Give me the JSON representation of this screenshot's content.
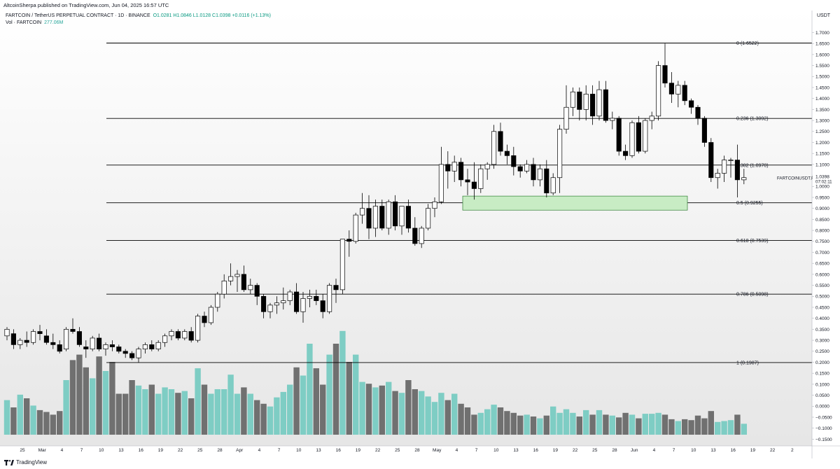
{
  "header": {
    "publisher": "AltcoinSherpa",
    "publish_text": "AltcoinSherpa published on TradingView.com, Jun 04, 2025 16:57 UTC"
  },
  "legend": {
    "symbol_line": "FARTCOIN / TetherUS PERPETUAL CONTRACT · 1D · BINANCE",
    "ohlc": "O1.0281 H1.0846 L1.0128 C1.0398 +0.0116 (+1.13%)",
    "volume_label": "Vol · FARTCOIN",
    "volume_value": "277.06M"
  },
  "price_axis": {
    "currency": "USDT",
    "current_price": "1.0398",
    "countdown": "07:02:11",
    "symbol_tag": "FARTCOINUSDT.P",
    "ticks": [
      "1.7000",
      "1.6500",
      "1.6000",
      "1.5500",
      "1.5000",
      "1.4500",
      "1.4000",
      "1.3500",
      "1.3000",
      "1.2500",
      "1.2000",
      "1.1500",
      "1.1000",
      "1.0500",
      "1.0000",
      "0.9500",
      "0.9000",
      "0.8500",
      "0.8000",
      "0.7500",
      "0.7000",
      "0.6500",
      "0.6000",
      "0.5500",
      "0.5000",
      "0.4500",
      "0.4000",
      "0.3500",
      "0.3000",
      "0.2500",
      "0.2000",
      "0.1500",
      "0.1000",
      "0.0500",
      "0.0000",
      "−0.0500",
      "−0.1000",
      "−0.1500"
    ]
  },
  "time_axis": {
    "labels": [
      "25",
      "Mar",
      "4",
      "7",
      "10",
      "13",
      "16",
      "19",
      "22",
      "25",
      "28",
      "Apr",
      "4",
      "7",
      "10",
      "13",
      "16",
      "19",
      "22",
      "25",
      "28",
      "May",
      "4",
      "7",
      "10",
      "13",
      "16",
      "19",
      "22",
      "25",
      "28",
      "Jun",
      "4",
      "7",
      "10",
      "13",
      "16",
      "19",
      "22",
      "2"
    ]
  },
  "footer": {
    "brand": "TradingView"
  },
  "colors": {
    "up_body": "#ffffff",
    "down_body": "#000000",
    "candle_outline": "#000000",
    "vol_up": "#7ecdc4",
    "vol_down": "#707070",
    "fib_line": "#000000",
    "zone_fill": "#c8ecc4",
    "zone_border": "#2e7d32",
    "background_bottom": "#e6e6e6"
  },
  "chart_data": {
    "type": "candlestick",
    "symbol": "FARTCOIN / TetherUS PERPETUAL CONTRACT",
    "interval": "1D",
    "exchange": "BINANCE",
    "ylim": [
      -0.15,
      1.72
    ],
    "price_scale": "linear",
    "grid": false,
    "first_bar_date": "2025-02-23",
    "fib_levels": [
      {
        "label": "0 (1.6522)",
        "price": 1.6522
      },
      {
        "label": "0.236 (1.3092)",
        "price": 1.3092
      },
      {
        "label": "0.382 (1.0970)",
        "price": 1.097
      },
      {
        "label": "0.5 (0.9255)",
        "price": 0.9255
      },
      {
        "label": "0.618 (0.7539)",
        "price": 0.7539
      },
      {
        "label": "0.786 (0.5098)",
        "price": 0.5098
      },
      {
        "label": "1 (0.1987)",
        "price": 0.1987
      }
    ],
    "support_zone": {
      "top": 0.956,
      "bottom": 0.892,
      "start_date": "2025-05-04",
      "end_date": "2025-06-07"
    },
    "volume_note": "volume panel overlaid at bottom, relative units",
    "candles": [
      {
        "o": 0.32,
        "h": 0.36,
        "l": 0.3,
        "c": 0.35,
        "v": 0.38
      },
      {
        "o": 0.33,
        "h": 0.35,
        "l": 0.26,
        "c": 0.28,
        "v": 0.3
      },
      {
        "o": 0.28,
        "h": 0.31,
        "l": 0.26,
        "c": 0.3,
        "v": 0.44
      },
      {
        "o": 0.3,
        "h": 0.34,
        "l": 0.27,
        "c": 0.29,
        "v": 0.4
      },
      {
        "o": 0.29,
        "h": 0.35,
        "l": 0.28,
        "c": 0.34,
        "v": 0.32
      },
      {
        "o": 0.34,
        "h": 0.37,
        "l": 0.3,
        "c": 0.33,
        "v": 0.27
      },
      {
        "o": 0.32,
        "h": 0.35,
        "l": 0.28,
        "c": 0.29,
        "v": 0.25
      },
      {
        "o": 0.29,
        "h": 0.33,
        "l": 0.26,
        "c": 0.28,
        "v": 0.22
      },
      {
        "o": 0.28,
        "h": 0.3,
        "l": 0.24,
        "c": 0.25,
        "v": 0.26
      },
      {
        "o": 0.26,
        "h": 0.36,
        "l": 0.25,
        "c": 0.35,
        "v": 0.6
      },
      {
        "o": 0.35,
        "h": 0.4,
        "l": 0.33,
        "c": 0.34,
        "v": 0.82
      },
      {
        "o": 0.34,
        "h": 0.36,
        "l": 0.27,
        "c": 0.28,
        "v": 0.88
      },
      {
        "o": 0.27,
        "h": 0.3,
        "l": 0.22,
        "c": 0.26,
        "v": 0.74
      },
      {
        "o": 0.26,
        "h": 0.32,
        "l": 0.25,
        "c": 0.31,
        "v": 0.62
      },
      {
        "o": 0.31,
        "h": 0.33,
        "l": 0.25,
        "c": 0.26,
        "v": 0.86
      },
      {
        "o": 0.26,
        "h": 0.29,
        "l": 0.23,
        "c": 0.28,
        "v": 0.7
      },
      {
        "o": 0.28,
        "h": 0.3,
        "l": 0.25,
        "c": 0.27,
        "v": 0.8
      },
      {
        "o": 0.27,
        "h": 0.28,
        "l": 0.24,
        "c": 0.25,
        "v": 0.45
      },
      {
        "o": 0.25,
        "h": 0.26,
        "l": 0.22,
        "c": 0.24,
        "v": 0.45
      },
      {
        "o": 0.24,
        "h": 0.25,
        "l": 0.21,
        "c": 0.22,
        "v": 0.6
      },
      {
        "o": 0.22,
        "h": 0.27,
        "l": 0.2,
        "c": 0.26,
        "v": 0.54
      },
      {
        "o": 0.26,
        "h": 0.29,
        "l": 0.24,
        "c": 0.28,
        "v": 0.5
      },
      {
        "o": 0.28,
        "h": 0.3,
        "l": 0.25,
        "c": 0.26,
        "v": 0.55
      },
      {
        "o": 0.26,
        "h": 0.3,
        "l": 0.25,
        "c": 0.29,
        "v": 0.45
      },
      {
        "o": 0.29,
        "h": 0.33,
        "l": 0.27,
        "c": 0.32,
        "v": 0.52
      },
      {
        "o": 0.32,
        "h": 0.35,
        "l": 0.3,
        "c": 0.34,
        "v": 0.5
      },
      {
        "o": 0.34,
        "h": 0.35,
        "l": 0.3,
        "c": 0.31,
        "v": 0.46
      },
      {
        "o": 0.31,
        "h": 0.35,
        "l": 0.3,
        "c": 0.34,
        "v": 0.48
      },
      {
        "o": 0.34,
        "h": 0.36,
        "l": 0.29,
        "c": 0.3,
        "v": 0.4
      },
      {
        "o": 0.3,
        "h": 0.42,
        "l": 0.29,
        "c": 0.41,
        "v": 0.73
      },
      {
        "o": 0.41,
        "h": 0.43,
        "l": 0.36,
        "c": 0.38,
        "v": 0.55
      },
      {
        "o": 0.38,
        "h": 0.46,
        "l": 0.37,
        "c": 0.45,
        "v": 0.45
      },
      {
        "o": 0.45,
        "h": 0.52,
        "l": 0.43,
        "c": 0.51,
        "v": 0.5
      },
      {
        "o": 0.51,
        "h": 0.6,
        "l": 0.49,
        "c": 0.57,
        "v": 0.5
      },
      {
        "o": 0.57,
        "h": 0.65,
        "l": 0.55,
        "c": 0.59,
        "v": 0.66
      },
      {
        "o": 0.59,
        "h": 0.62,
        "l": 0.52,
        "c": 0.6,
        "v": 0.45
      },
      {
        "o": 0.6,
        "h": 0.64,
        "l": 0.52,
        "c": 0.53,
        "v": 0.52
      },
      {
        "o": 0.53,
        "h": 0.58,
        "l": 0.51,
        "c": 0.55,
        "v": 0.45
      },
      {
        "o": 0.55,
        "h": 0.56,
        "l": 0.46,
        "c": 0.5,
        "v": 0.38
      },
      {
        "o": 0.5,
        "h": 0.51,
        "l": 0.4,
        "c": 0.43,
        "v": 0.34
      },
      {
        "o": 0.43,
        "h": 0.47,
        "l": 0.4,
        "c": 0.46,
        "v": 0.31
      },
      {
        "o": 0.46,
        "h": 0.5,
        "l": 0.42,
        "c": 0.47,
        "v": 0.41
      },
      {
        "o": 0.47,
        "h": 0.54,
        "l": 0.44,
        "c": 0.48,
        "v": 0.47
      },
      {
        "o": 0.48,
        "h": 0.53,
        "l": 0.46,
        "c": 0.52,
        "v": 0.55
      },
      {
        "o": 0.52,
        "h": 0.56,
        "l": 0.42,
        "c": 0.43,
        "v": 0.74
      },
      {
        "o": 0.43,
        "h": 0.52,
        "l": 0.38,
        "c": 0.49,
        "v": 0.65
      },
      {
        "o": 0.49,
        "h": 0.53,
        "l": 0.45,
        "c": 0.5,
        "v": 1.0
      },
      {
        "o": 0.5,
        "h": 0.53,
        "l": 0.46,
        "c": 0.48,
        "v": 0.73
      },
      {
        "o": 0.48,
        "h": 0.51,
        "l": 0.4,
        "c": 0.43,
        "v": 0.55
      },
      {
        "o": 0.43,
        "h": 0.56,
        "l": 0.42,
        "c": 0.55,
        "v": 0.88
      },
      {
        "o": 0.55,
        "h": 0.58,
        "l": 0.47,
        "c": 0.53,
        "v": 1.0
      },
      {
        "o": 0.53,
        "h": 0.76,
        "l": 0.51,
        "c": 0.76,
        "v": 1.14
      },
      {
        "o": 0.76,
        "h": 0.8,
        "l": 0.68,
        "c": 0.75,
        "v": 0.8
      },
      {
        "o": 0.75,
        "h": 0.88,
        "l": 0.74,
        "c": 0.87,
        "v": 0.88
      },
      {
        "o": 0.87,
        "h": 0.97,
        "l": 0.83,
        "c": 0.9,
        "v": 0.58
      },
      {
        "o": 0.9,
        "h": 0.96,
        "l": 0.76,
        "c": 0.81,
        "v": 0.56
      },
      {
        "o": 0.81,
        "h": 0.94,
        "l": 0.77,
        "c": 0.91,
        "v": 0.52
      },
      {
        "o": 0.91,
        "h": 0.94,
        "l": 0.8,
        "c": 0.81,
        "v": 0.54
      },
      {
        "o": 0.81,
        "h": 0.94,
        "l": 0.78,
        "c": 0.93,
        "v": 0.58
      },
      {
        "o": 0.93,
        "h": 0.96,
        "l": 0.8,
        "c": 0.82,
        "v": 0.48
      },
      {
        "o": 0.82,
        "h": 0.91,
        "l": 0.78,
        "c": 0.91,
        "v": 0.46
      },
      {
        "o": 0.91,
        "h": 0.94,
        "l": 0.79,
        "c": 0.81,
        "v": 0.6
      },
      {
        "o": 0.81,
        "h": 0.86,
        "l": 0.73,
        "c": 0.74,
        "v": 0.5
      },
      {
        "o": 0.74,
        "h": 0.82,
        "l": 0.72,
        "c": 0.81,
        "v": 0.48
      },
      {
        "o": 0.81,
        "h": 0.92,
        "l": 0.8,
        "c": 0.9,
        "v": 0.42
      },
      {
        "o": 0.9,
        "h": 0.95,
        "l": 0.86,
        "c": 0.93,
        "v": 0.36
      },
      {
        "o": 0.93,
        "h": 1.18,
        "l": 0.92,
        "c": 1.1,
        "v": 0.46
      },
      {
        "o": 1.1,
        "h": 1.16,
        "l": 0.99,
        "c": 1.07,
        "v": 0.38
      },
      {
        "o": 1.07,
        "h": 1.14,
        "l": 1.02,
        "c": 1.11,
        "v": 0.45
      },
      {
        "o": 1.11,
        "h": 1.13,
        "l": 1.0,
        "c": 1.03,
        "v": 0.34
      },
      {
        "o": 1.03,
        "h": 1.08,
        "l": 0.96,
        "c": 1.02,
        "v": 0.3
      },
      {
        "o": 1.02,
        "h": 1.11,
        "l": 0.94,
        "c": 0.99,
        "v": 0.22
      },
      {
        "o": 0.99,
        "h": 1.1,
        "l": 0.97,
        "c": 1.08,
        "v": 0.24
      },
      {
        "o": 1.08,
        "h": 1.11,
        "l": 1.03,
        "c": 1.1,
        "v": 0.28
      },
      {
        "o": 1.1,
        "h": 1.28,
        "l": 1.08,
        "c": 1.25,
        "v": 0.33
      },
      {
        "o": 1.25,
        "h": 1.29,
        "l": 1.14,
        "c": 1.16,
        "v": 0.3
      },
      {
        "o": 1.16,
        "h": 1.19,
        "l": 1.1,
        "c": 1.14,
        "v": 0.26
      },
      {
        "o": 1.14,
        "h": 1.18,
        "l": 1.05,
        "c": 1.09,
        "v": 0.24
      },
      {
        "o": 1.09,
        "h": 1.1,
        "l": 1.04,
        "c": 1.07,
        "v": 0.21
      },
      {
        "o": 1.07,
        "h": 1.12,
        "l": 1.06,
        "c": 1.1,
        "v": 0.22
      },
      {
        "o": 1.1,
        "h": 1.13,
        "l": 1.0,
        "c": 1.03,
        "v": 0.2
      },
      {
        "o": 1.03,
        "h": 1.1,
        "l": 1.0,
        "c": 1.08,
        "v": 0.18
      },
      {
        "o": 1.08,
        "h": 1.12,
        "l": 0.95,
        "c": 0.97,
        "v": 0.21
      },
      {
        "o": 0.97,
        "h": 1.06,
        "l": 0.96,
        "c": 1.04,
        "v": 0.31
      },
      {
        "o": 1.04,
        "h": 1.28,
        "l": 0.97,
        "c": 1.26,
        "v": 0.24
      },
      {
        "o": 1.26,
        "h": 1.46,
        "l": 1.24,
        "c": 1.36,
        "v": 0.28
      },
      {
        "o": 1.36,
        "h": 1.45,
        "l": 1.32,
        "c": 1.43,
        "v": 0.24
      },
      {
        "o": 1.43,
        "h": 1.45,
        "l": 1.3,
        "c": 1.35,
        "v": 0.2
      },
      {
        "o": 1.35,
        "h": 1.46,
        "l": 1.3,
        "c": 1.42,
        "v": 0.27
      },
      {
        "o": 1.42,
        "h": 1.46,
        "l": 1.28,
        "c": 1.32,
        "v": 0.22
      },
      {
        "o": 1.32,
        "h": 1.48,
        "l": 1.3,
        "c": 1.44,
        "v": 0.27
      },
      {
        "o": 1.44,
        "h": 1.48,
        "l": 1.29,
        "c": 1.3,
        "v": 0.22
      },
      {
        "o": 1.3,
        "h": 1.34,
        "l": 1.26,
        "c": 1.31,
        "v": 0.21
      },
      {
        "o": 1.31,
        "h": 1.32,
        "l": 1.14,
        "c": 1.16,
        "v": 0.19
      },
      {
        "o": 1.16,
        "h": 1.19,
        "l": 1.12,
        "c": 1.14,
        "v": 0.24
      },
      {
        "o": 1.14,
        "h": 1.3,
        "l": 1.13,
        "c": 1.29,
        "v": 0.22
      },
      {
        "o": 1.29,
        "h": 1.32,
        "l": 1.15,
        "c": 1.16,
        "v": 0.18
      },
      {
        "o": 1.16,
        "h": 1.31,
        "l": 1.15,
        "c": 1.3,
        "v": 0.23
      },
      {
        "o": 1.3,
        "h": 1.34,
        "l": 1.26,
        "c": 1.32,
        "v": 0.23
      },
      {
        "o": 1.32,
        "h": 1.57,
        "l": 1.3,
        "c": 1.55,
        "v": 0.24
      },
      {
        "o": 1.55,
        "h": 1.65,
        "l": 1.45,
        "c": 1.47,
        "v": 0.22
      },
      {
        "o": 1.47,
        "h": 1.52,
        "l": 1.38,
        "c": 1.42,
        "v": 0.17
      },
      {
        "o": 1.42,
        "h": 1.48,
        "l": 1.36,
        "c": 1.46,
        "v": 0.15
      },
      {
        "o": 1.46,
        "h": 1.48,
        "l": 1.37,
        "c": 1.39,
        "v": 0.17
      },
      {
        "o": 1.39,
        "h": 1.4,
        "l": 1.33,
        "c": 1.36,
        "v": 0.16
      },
      {
        "o": 1.36,
        "h": 1.37,
        "l": 1.28,
        "c": 1.31,
        "v": 0.21
      },
      {
        "o": 1.31,
        "h": 1.32,
        "l": 1.18,
        "c": 1.2,
        "v": 0.18
      },
      {
        "o": 1.2,
        "h": 1.22,
        "l": 1.02,
        "c": 1.04,
        "v": 0.26
      },
      {
        "o": 1.04,
        "h": 1.08,
        "l": 0.99,
        "c": 1.06,
        "v": 0.14
      },
      {
        "o": 1.06,
        "h": 1.14,
        "l": 1.02,
        "c": 1.12,
        "v": 0.15
      },
      {
        "o": 1.12,
        "h": 1.13,
        "l": 1.04,
        "c": 1.12,
        "v": 0.16
      },
      {
        "o": 1.12,
        "h": 1.19,
        "l": 0.95,
        "c": 1.03,
        "v": 0.22
      },
      {
        "o": 1.03,
        "h": 1.08,
        "l": 1.01,
        "c": 1.04,
        "v": 0.12
      }
    ]
  }
}
